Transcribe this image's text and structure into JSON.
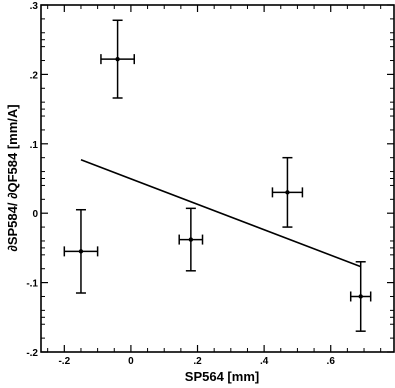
{
  "chart_data": {
    "type": "scatter",
    "title": "",
    "xlabel": "SP564 [mm]",
    "ylabel": "∂SP584/ ∂QF584 [mm/A]",
    "xlim": [
      -0.27,
      0.79
    ],
    "ylim": [
      -0.2,
      0.3
    ],
    "x_ticks": [
      -0.2,
      0,
      0.2,
      0.4,
      0.6
    ],
    "x_tick_labels": [
      "-.2",
      "0",
      ".2",
      ".4",
      ".6"
    ],
    "y_ticks": [
      -0.2,
      -0.1,
      0,
      0.1,
      0.2,
      0.3
    ],
    "y_tick_labels": [
      "-.2",
      "-.1",
      "0",
      ".1",
      ".2",
      ".3"
    ],
    "grid": false,
    "points": [
      {
        "x": -0.15,
        "y": -0.055,
        "xerr": 0.05,
        "yerr": 0.06
      },
      {
        "x": -0.04,
        "y": 0.222,
        "xerr": 0.05,
        "yerr": 0.056
      },
      {
        "x": 0.18,
        "y": -0.038,
        "xerr": 0.035,
        "yerr": 0.045
      },
      {
        "x": 0.47,
        "y": 0.03,
        "xerr": 0.045,
        "yerr": 0.05
      },
      {
        "x": 0.69,
        "y": -0.12,
        "xerr": 0.03,
        "yerr": 0.05
      }
    ],
    "fit_line": {
      "x": [
        -0.15,
        0.69
      ],
      "y": [
        0.077,
        -0.077
      ]
    }
  }
}
